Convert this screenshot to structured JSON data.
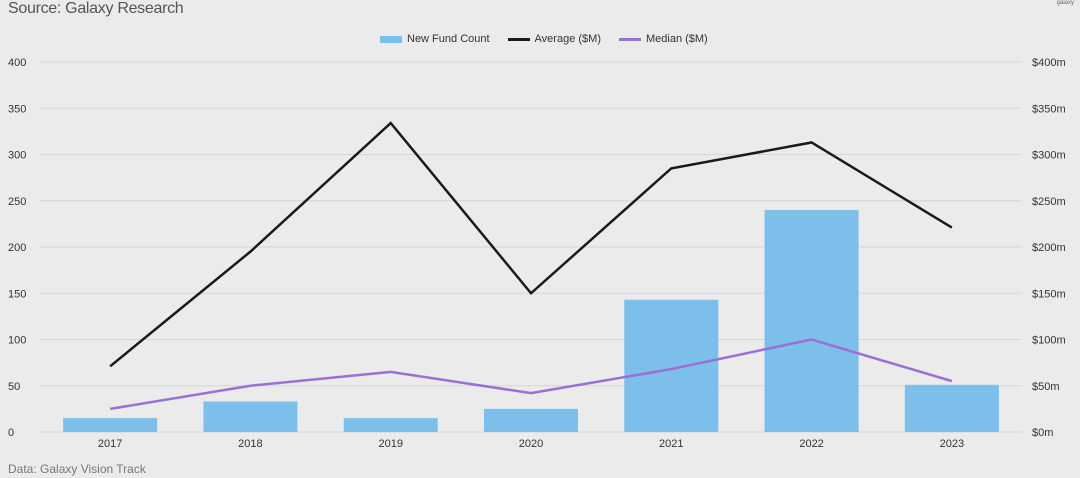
{
  "header": {
    "source": "Source: Galaxy Research",
    "logo": "galaxy"
  },
  "footer": {
    "data_note": "Data: Galaxy Vision Track"
  },
  "colors": {
    "bar": "#7bbfea",
    "average": "#1a1a1a",
    "median": "#9b6fd6",
    "grid": "#d6d6d6"
  },
  "chart_data": {
    "type": "bar",
    "categories": [
      "2017",
      "2018",
      "2019",
      "2020",
      "2021",
      "2022",
      "2023"
    ],
    "series": [
      {
        "name": "New Fund Count",
        "type": "bar",
        "axis": "left",
        "values": [
          15,
          33,
          15,
          25,
          143,
          240,
          51
        ]
      },
      {
        "name": "Average ($M)",
        "type": "line",
        "axis": "right",
        "values": [
          71,
          195,
          334,
          150,
          285,
          313,
          221
        ]
      },
      {
        "name": "Median ($M)",
        "type": "line",
        "axis": "right",
        "values": [
          25,
          50,
          65,
          42,
          68,
          100,
          55
        ]
      }
    ],
    "ylim": [
      0,
      400
    ],
    "y2lim": [
      0,
      400
    ],
    "yticks": [
      "0",
      "50",
      "100",
      "150",
      "200",
      "250",
      "300",
      "350",
      "400"
    ],
    "y2ticks": [
      "$0m",
      "$50m",
      "$100m",
      "$150m",
      "$200m",
      "$250m",
      "$300m",
      "$350m",
      "$400m"
    ],
    "grid": true,
    "legend_position": "top-center"
  }
}
